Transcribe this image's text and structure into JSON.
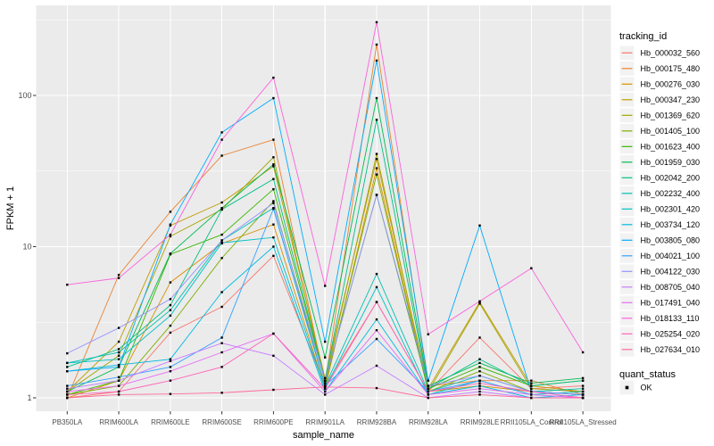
{
  "figure": {
    "background": "#FFFFFF",
    "panel_background": "#EBEBEB",
    "grid_color": "#FFFFFF",
    "tick_color": "#333333",
    "tick_label_color": "#4D4D4D",
    "legend_key_background": "#F2F2F2",
    "point_color": "#000000"
  },
  "chart_data": {
    "type": "line",
    "title": "",
    "xlabel": "sample_name",
    "ylabel": "FPKM + 1",
    "y_scale": "log10",
    "y_ticks": [
      1,
      10,
      100
    ],
    "y_tick_labels": [
      "1",
      "10",
      "100"
    ],
    "y_minor_ticks": [
      3.162,
      31.62,
      316.2
    ],
    "ylim": [
      1,
      400
    ],
    "grid": true,
    "point_marker": {
      "shape": "square",
      "color": "#000000",
      "size": 2.4
    },
    "categories": [
      "PB350LA",
      "RRIM600LA",
      "RRIM600LE",
      "RRIM600SE",
      "RRIM600PE",
      "RRIM901LA",
      "RRIM928BA",
      "RRIM928LA",
      "RRIM928LE",
      "RRII105LA_Control",
      "RRII105LA_Stressed"
    ],
    "legend": {
      "title": "tracking_id",
      "position": "right",
      "secondary_title": "quant_status",
      "secondary_items": [
        {
          "label": "OK",
          "marker": "black-square"
        }
      ]
    },
    "series": [
      {
        "name": "Hb_000032_560",
        "color": "#F8766D",
        "values": [
          1.0,
          1.1,
          2.7,
          4.0,
          8.7,
          1.2,
          4.3,
          1.1,
          2.5,
          1.15,
          1.2
        ]
      },
      {
        "name": "Hb_000175_480",
        "color": "#EA8331",
        "values": [
          1.0,
          6.5,
          17,
          40,
          51,
          1.25,
          217,
          1.2,
          1.3,
          1.3,
          1.05
        ]
      },
      {
        "name": "Hb_000276_030",
        "color": "#D89000",
        "values": [
          1.0,
          1.3,
          5.8,
          10.5,
          14,
          1.15,
          33,
          1.1,
          1.2,
          1.1,
          1.05
        ]
      },
      {
        "name": "Hb_000347_230",
        "color": "#C09B00",
        "values": [
          1.1,
          2.35,
          13.8,
          19.6,
          34,
          1.35,
          38,
          1.15,
          4.3,
          1.2,
          1.1
        ]
      },
      {
        "name": "Hb_001369_620",
        "color": "#A3A500",
        "values": [
          1.1,
          1.9,
          11.7,
          17.6,
          39,
          1.25,
          41,
          1.1,
          4.2,
          1.15,
          1.1
        ]
      },
      {
        "name": "Hb_001405_100",
        "color": "#7CAE00",
        "values": [
          1.05,
          1.2,
          3.0,
          8.4,
          20,
          1.2,
          30,
          1.1,
          1.5,
          1.1,
          1.05
        ]
      },
      {
        "name": "Hb_001623_400",
        "color": "#39B600",
        "values": [
          1.05,
          1.3,
          8.9,
          12,
          24,
          1.3,
          22,
          1.15,
          1.6,
          1.2,
          1.3
        ]
      },
      {
        "name": "Hb_001959_030",
        "color": "#00BB4E",
        "values": [
          1.1,
          1.6,
          9.0,
          18,
          35,
          1.85,
          96,
          1.2,
          1.7,
          1.25,
          1.35
        ]
      },
      {
        "name": "Hb_002042_200",
        "color": "#00C087",
        "values": [
          1.6,
          2.1,
          4.1,
          17.6,
          28,
          1.3,
          69,
          1.15,
          1.8,
          1.2,
          1.3
        ]
      },
      {
        "name": "Hb_002232_400",
        "color": "#00C0B2",
        "values": [
          1.7,
          2.0,
          3.8,
          11,
          18,
          1.2,
          6.6,
          1.1,
          1.4,
          1.1,
          1.15
        ]
      },
      {
        "name": "Hb_002301_420",
        "color": "#00BFC4",
        "values": [
          1.7,
          1.8,
          3.5,
          10.6,
          11.5,
          1.15,
          5.4,
          1.05,
          1.3,
          1.05,
          1.1
        ]
      },
      {
        "name": "Hb_003734_120",
        "color": "#00BAE0",
        "values": [
          1.5,
          1.65,
          1.8,
          5.0,
          10,
          1.1,
          3.3,
          1.05,
          1.2,
          1.0,
          1.05
        ]
      },
      {
        "name": "Hb_003805_080",
        "color": "#00ACFC",
        "values": [
          1.5,
          1.6,
          14,
          57,
          96,
          2.35,
          170,
          1.3,
          13.8,
          1.1,
          1.05
        ]
      },
      {
        "name": "Hb_004021_100",
        "color": "#35A2FF",
        "values": [
          1.2,
          1.37,
          1.6,
          2.5,
          17.8,
          1.2,
          2.45,
          1.1,
          1.3,
          1.05,
          1.0
        ]
      },
      {
        "name": "Hb_004122_030",
        "color": "#9590FF",
        "values": [
          1.97,
          2.9,
          4.5,
          11,
          19.4,
          1.3,
          22,
          1.2,
          1.4,
          1.1,
          1.05
        ]
      },
      {
        "name": "Hb_008705_040",
        "color": "#C77CFF",
        "values": [
          1.15,
          1.3,
          1.75,
          2.3,
          1.9,
          1.05,
          1.63,
          1.0,
          1.1,
          1.0,
          1.0
        ]
      },
      {
        "name": "Hb_017491_040",
        "color": "#E76BF3",
        "values": [
          1.1,
          1.2,
          1.5,
          2.0,
          2.66,
          1.1,
          2.8,
          1.05,
          1.15,
          1.05,
          1.0
        ]
      },
      {
        "name": "Hb_018133_110",
        "color": "#FA62DB",
        "values": [
          5.6,
          6.2,
          12,
          51,
          131,
          5.5,
          305,
          2.63,
          4.35,
          7.2,
          2.0
        ]
      },
      {
        "name": "Hb_025254_020",
        "color": "#FF62BC",
        "values": [
          1.05,
          1.1,
          1.3,
          1.6,
          2.66,
          1.15,
          4.3,
          1.1,
          1.25,
          1.1,
          1.0
        ]
      },
      {
        "name": "Hb_027634_010",
        "color": "#FF6A98",
        "values": [
          1.0,
          1.05,
          1.06,
          1.08,
          1.13,
          1.18,
          1.16,
          1.0,
          1.05,
          1.0,
          1.0
        ]
      }
    ]
  }
}
